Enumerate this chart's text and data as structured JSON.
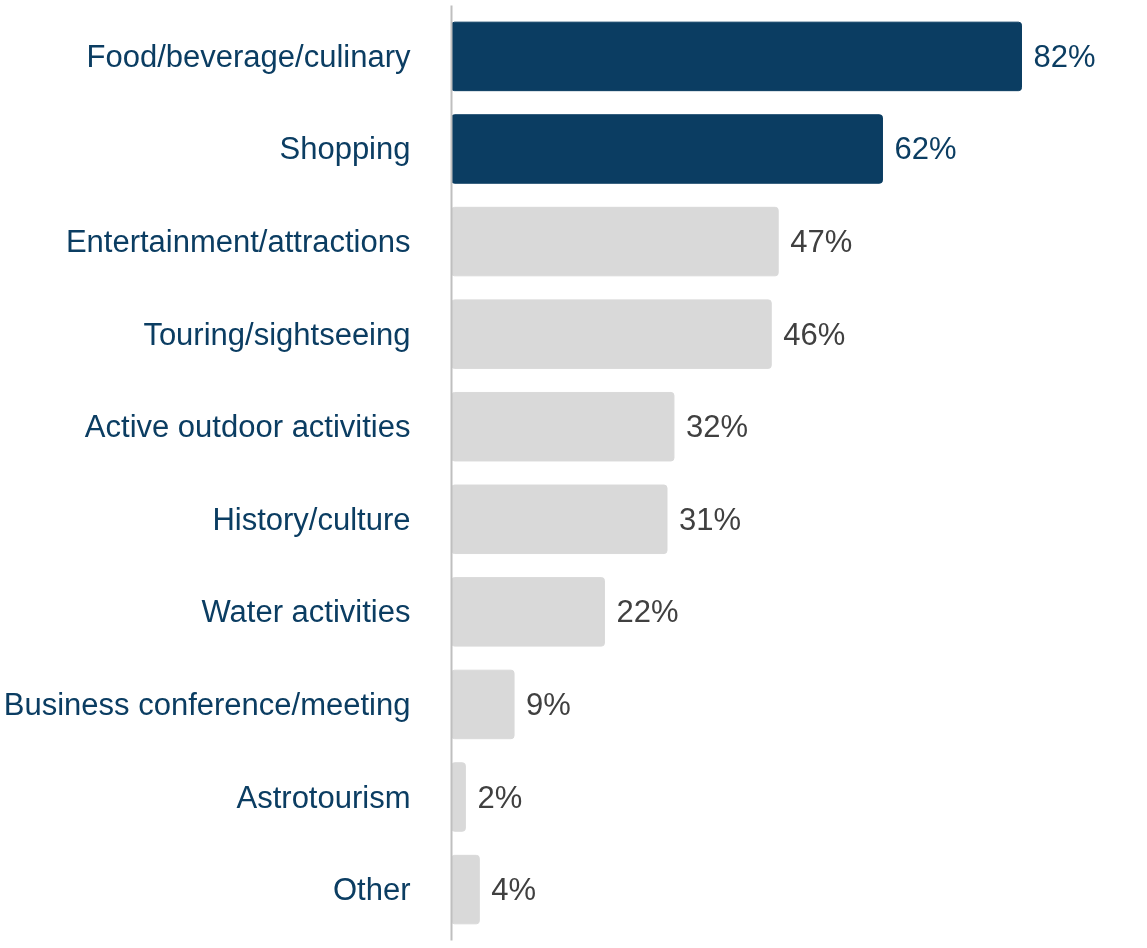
{
  "chart_data": {
    "type": "bar",
    "orientation": "horizontal",
    "categories": [
      "Food/beverage/culinary",
      "Shopping",
      "Entertainment/attractions",
      "Touring/sightseeing",
      "Active outdoor activities",
      "History/culture",
      "Water activities",
      "Business conference/meeting",
      "Astrotourism",
      "Other"
    ],
    "values": [
      82,
      62,
      47,
      46,
      32,
      31,
      22,
      9,
      2,
      4
    ],
    "value_labels": [
      "82%",
      "62%",
      "47%",
      "46%",
      "32%",
      "31%",
      "22%",
      "9%",
      "2%",
      "4%"
    ],
    "colors": [
      "#0b3d62",
      "#0b3d62",
      "#d9d9d9",
      "#d9d9d9",
      "#d9d9d9",
      "#d9d9d9",
      "#d9d9d9",
      "#d9d9d9",
      "#d9d9d9",
      "#d9d9d9"
    ],
    "grid": false
  }
}
